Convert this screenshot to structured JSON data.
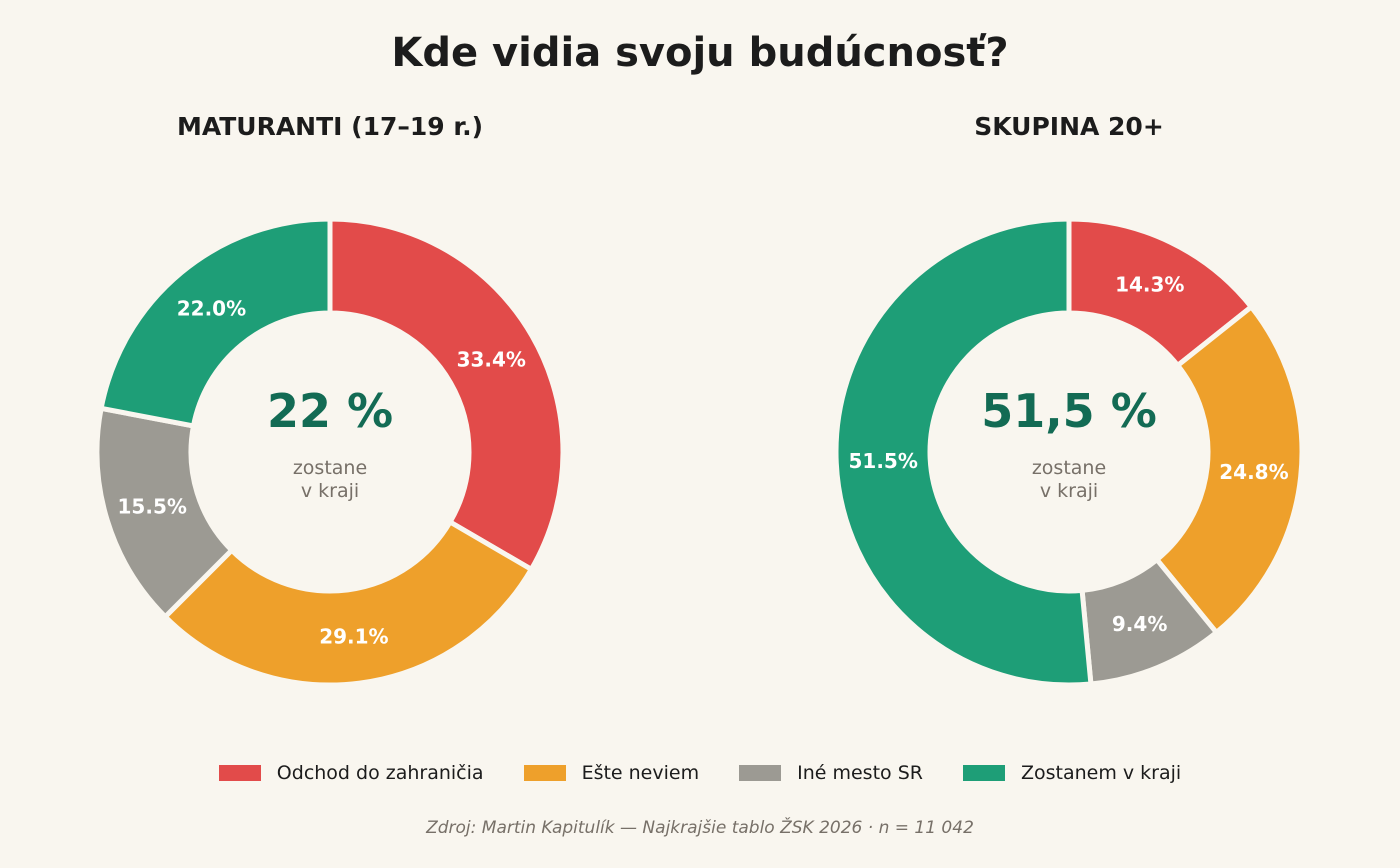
{
  "title": "Kde vidia svoju budúcnosť?",
  "legend": {
    "items": [
      {
        "label": "Odchod do zahraničia",
        "color": "#e24b4a"
      },
      {
        "label": "Ešte neviem",
        "color": "#eea02b"
      },
      {
        "label": "Iné mesto SR",
        "color": "#9c9a93"
      },
      {
        "label": "Zostanem v kraji",
        "color": "#1e9e77"
      }
    ]
  },
  "source": "Zdroj: Martin Kapitulík — Najkrajšie tablo ŽSK 2026  ·  n = 11 042",
  "chart_data": [
    {
      "type": "pie",
      "subtype": "donut",
      "title": "MATURANTI (17–19 r.)",
      "categories": [
        "Odchod do zahraničia",
        "Ešte neviem",
        "Iné mesto SR",
        "Zostanem v kraji"
      ],
      "values": [
        33.4,
        29.1,
        15.5,
        22.0
      ],
      "labels": [
        "33.4%",
        "29.1%",
        "15.5%",
        "22.0%"
      ],
      "colors": [
        "#e24b4a",
        "#eea02b",
        "#9c9a93",
        "#1e9e77"
      ],
      "center_value": "22 %",
      "center_caption_line1": "zostane",
      "center_caption_line2": "v kraji",
      "start": "12 o'clock",
      "direction": "clockwise"
    },
    {
      "type": "pie",
      "subtype": "donut",
      "title": "SKUPINA 20+",
      "categories": [
        "Odchod do zahraničia",
        "Ešte neviem",
        "Iné mesto SR",
        "Zostanem v kraji"
      ],
      "values": [
        14.3,
        24.8,
        9.4,
        51.5
      ],
      "labels": [
        "14.3%",
        "24.8%",
        "9.4%",
        "51.5%"
      ],
      "colors": [
        "#e24b4a",
        "#eea02b",
        "#9c9a93",
        "#1e9e77"
      ],
      "center_value": "51,5 %",
      "center_caption_line1": "zostane",
      "center_caption_line2": "v kraji",
      "start": "12 o'clock",
      "direction": "clockwise"
    }
  ],
  "colors": {
    "background": "#f9f6ef",
    "center_value": "#136b54",
    "center_caption": "#777068",
    "slice_label": "#ffffff"
  }
}
